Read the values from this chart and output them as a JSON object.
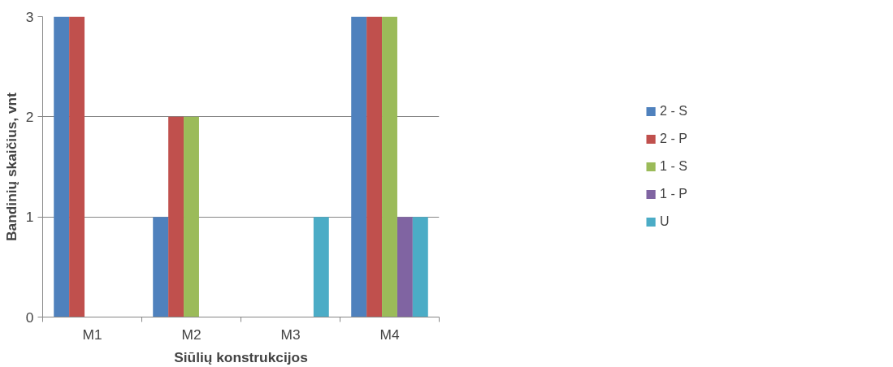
{
  "chart_data": {
    "type": "bar",
    "xlabel": "Siūlių konstrukcijos",
    "ylabel": "Bandinių skaičius, vnt",
    "categories": [
      "M1",
      "M2",
      "M3",
      "M4"
    ],
    "series": [
      {
        "name": "2 - S",
        "color": "#4f81bd",
        "values": [
          3,
          1,
          0,
          3
        ]
      },
      {
        "name": "2 - P",
        "color": "#c0504d",
        "values": [
          3,
          2,
          0,
          3
        ]
      },
      {
        "name": "1 - S",
        "color": "#9bbb59",
        "values": [
          0,
          2,
          0,
          3
        ]
      },
      {
        "name": "1 - P",
        "color": "#8064a2",
        "values": [
          0,
          0,
          0,
          1
        ]
      },
      {
        "name": "U",
        "color": "#4bacc6",
        "values": [
          0,
          0,
          1,
          1
        ]
      }
    ],
    "ylim": [
      0,
      3
    ],
    "yticks": [
      0,
      1,
      2,
      3
    ],
    "grid": "y",
    "legend": "right"
  }
}
